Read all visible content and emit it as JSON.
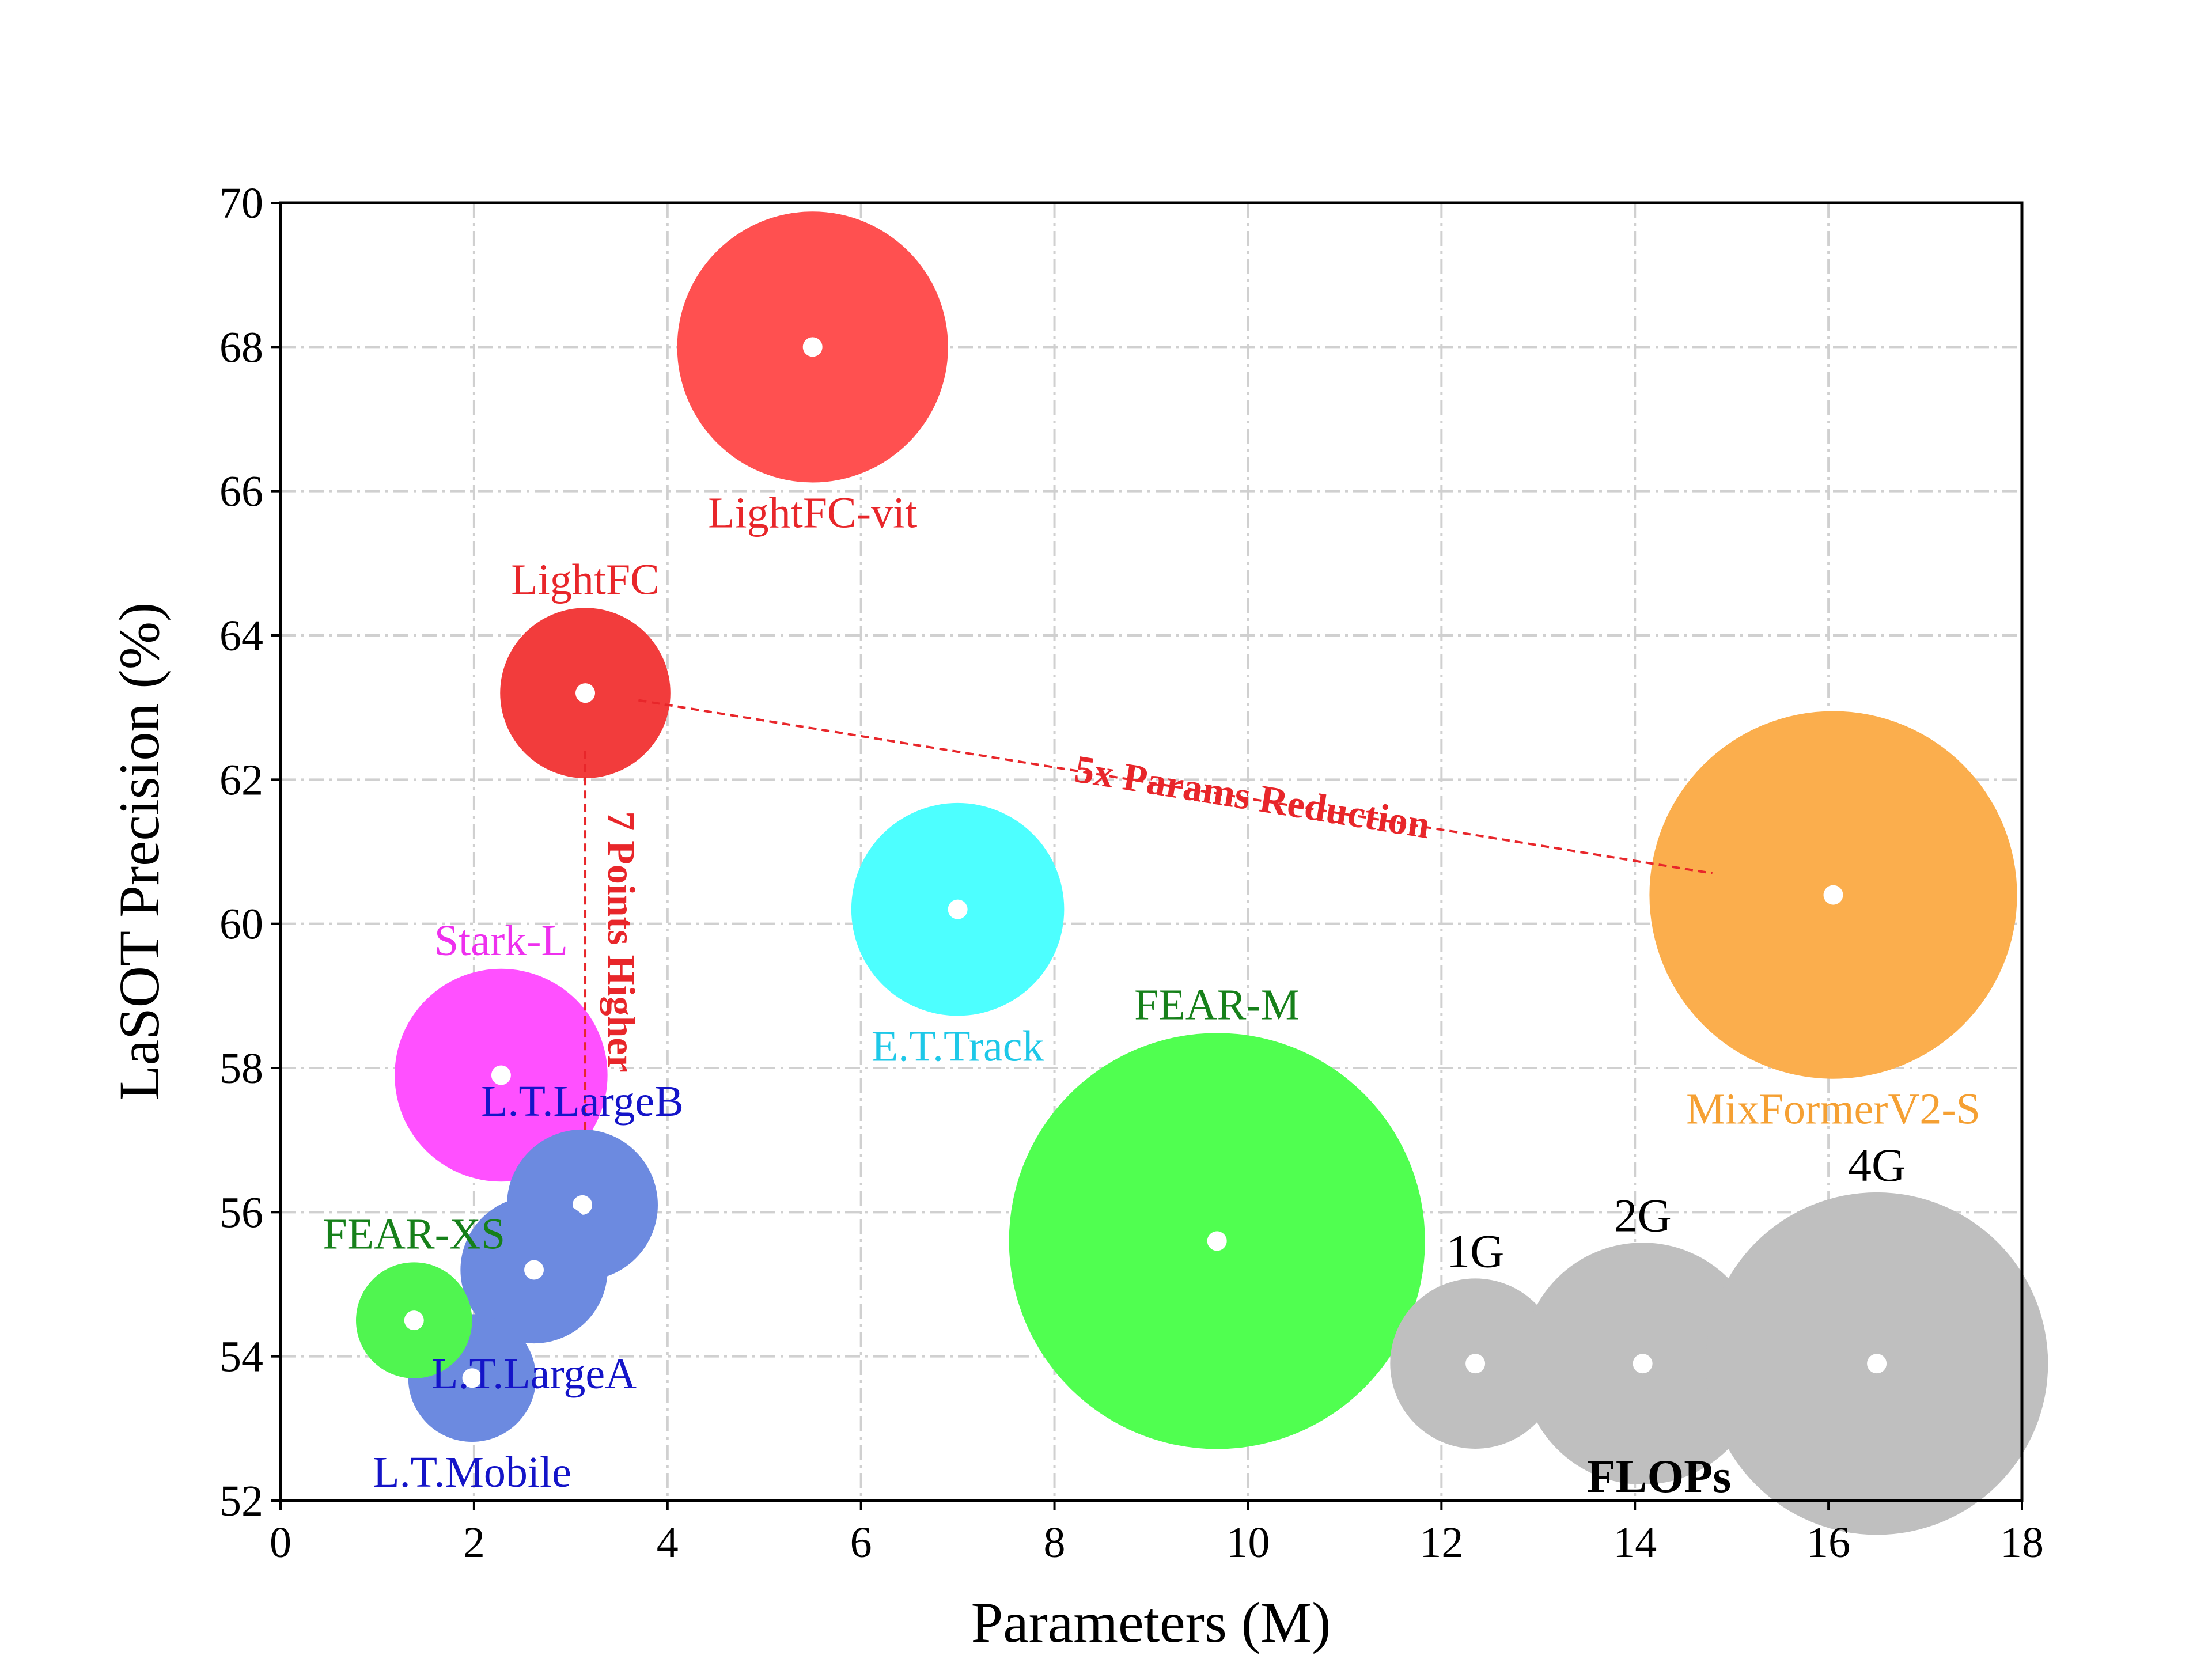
{
  "chart_data": {
    "type": "scatter",
    "bubble_chart": true,
    "xlabel": "Parameters (M)",
    "ylabel": "LaSOT Precision (%)",
    "xlim": [
      0,
      18
    ],
    "ylim": [
      52,
      70
    ],
    "xticks": [
      0,
      2,
      4,
      6,
      8,
      10,
      12,
      14,
      16,
      18
    ],
    "yticks": [
      52,
      54,
      56,
      58,
      60,
      62,
      64,
      66,
      68,
      70
    ],
    "grid": true,
    "points": [
      {
        "name": "LightFC-vit",
        "x": 5.5,
        "y": 68.0,
        "radius": 1.4,
        "color": "#ff5050",
        "label_color": "#e8262a",
        "label_pos": "below"
      },
      {
        "name": "LightFC",
        "x": 3.15,
        "y": 63.2,
        "radius": 0.88,
        "color": "#f23c3c",
        "label_color": "#e8262a",
        "label_pos": "above"
      },
      {
        "name": "E.T.Track",
        "x": 7.0,
        "y": 60.2,
        "radius": 1.1,
        "color": "#4dffff",
        "label_color": "#1ec8e8",
        "label_pos": "below"
      },
      {
        "name": "MixFormerV2-S",
        "x": 16.05,
        "y": 60.4,
        "radius": 1.9,
        "color": "#fbae4d",
        "label_color": "#f5a033",
        "label_pos": "below"
      },
      {
        "name": "Stark-L",
        "x": 2.28,
        "y": 57.9,
        "radius": 1.1,
        "color": "#ff50ff",
        "label_color": "#ee30ee",
        "label_pos": "above"
      },
      {
        "name": "L.T.LargeB",
        "x": 3.12,
        "y": 56.1,
        "radius": 0.78,
        "color": "#6c8ae0",
        "label_color": "#1414c8",
        "label_pos": "above"
      },
      {
        "name": "L.T.LargeA",
        "x": 2.62,
        "y": 55.2,
        "radius": 0.76,
        "color": "#6c8ae0",
        "label_color": "#1414c8",
        "label_pos": "below"
      },
      {
        "name": "L.T.Mobile",
        "x": 1.98,
        "y": 53.7,
        "radius": 0.66,
        "color": "#6c8ae0",
        "label_color": "#1414c8",
        "label_pos": "below"
      },
      {
        "name": "FEAR-XS",
        "x": 1.38,
        "y": 54.5,
        "radius": 0.6,
        "color": "#50f550",
        "label_color": "#16801a",
        "label_pos": "above"
      },
      {
        "name": "FEAR-M",
        "x": 9.68,
        "y": 55.6,
        "radius": 2.15,
        "color": "#50ff50",
        "label_color": "#16801a",
        "label_pos": "above"
      }
    ],
    "flops_legend": {
      "title": "FLOPs",
      "items": [
        {
          "name": "1G",
          "x": 12.35,
          "y": 53.9,
          "radius": 0.88
        },
        {
          "name": "2G",
          "x": 14.08,
          "y": 53.9,
          "radius": 1.25
        },
        {
          "name": "4G",
          "x": 16.5,
          "y": 53.9,
          "radius": 1.77
        }
      ],
      "color": "#bfbfbf"
    },
    "annotations": [
      {
        "text": "5x Params Reduction",
        "from": [
          3.7,
          63.1
        ],
        "to": [
          14.8,
          60.7
        ],
        "color": "#e8262a"
      },
      {
        "text": "7 Points Higher",
        "from": [
          3.15,
          62.4
        ],
        "to": [
          3.15,
          57.1
        ],
        "color": "#e8262a"
      }
    ]
  }
}
